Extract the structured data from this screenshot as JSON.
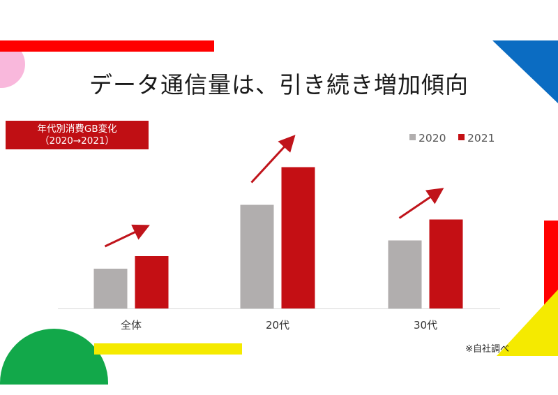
{
  "title": "データ通信量は、引き続き増加傾向",
  "badge": {
    "line1": "年代別消費GB変化",
    "line2": "（2020→2021）"
  },
  "note": "※自社調べ",
  "colors": {
    "series_2020": "#b1aeae",
    "series_2021": "#c40f14",
    "arrow": "#c0141b",
    "badge_bg": "#c00f14",
    "accent_red": "#ff0000",
    "accent_pink": "#f9b8dc",
    "accent_blue": "#0b6cc2",
    "accent_green": "#12a84a",
    "accent_yellow": "#f5ea00"
  },
  "chart_data": {
    "type": "bar",
    "categories": [
      "全体",
      "20代",
      "30代"
    ],
    "series": [
      {
        "name": "2020",
        "values": [
          3.8,
          9.9,
          6.5
        ]
      },
      {
        "name": "2021",
        "values": [
          5.0,
          13.5,
          8.5
        ]
      }
    ],
    "ylim": [
      0,
      15
    ],
    "legend": "top-right",
    "trend_arrows": true,
    "grid": false,
    "xlabel": "",
    "ylabel": ""
  }
}
